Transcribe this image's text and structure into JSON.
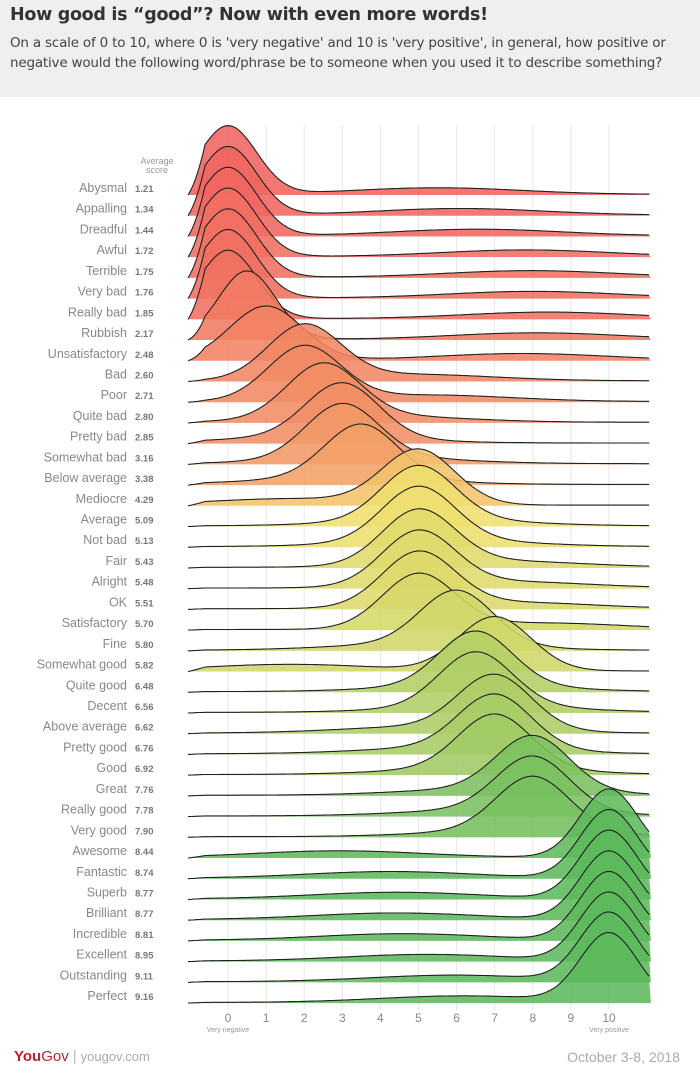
{
  "header": {
    "title": "How good is “good”? Now with even more words!",
    "subtitle": "On a scale of 0 to 10, where 0 is 'very negative' and 10 is 'very positive', in general, how positive or negative would the following word/phrase be to someone when you used it to describe something?"
  },
  "chart_data": {
    "type": "ridgeline",
    "value_column_header": [
      "Average",
      "score"
    ],
    "xlim": [
      0,
      10
    ],
    "x_ticks": [
      "0",
      "1",
      "2",
      "3",
      "4",
      "5",
      "6",
      "7",
      "8",
      "9",
      "10"
    ],
    "x_tick_notes": {
      "low": "Very negative",
      "high": "Very positive"
    },
    "grid": "vertical",
    "categories": [
      "Abysmal",
      "Appalling",
      "Dreadful",
      "Awful",
      "Terrible",
      "Very bad",
      "Really bad",
      "Rubbish",
      "Unsatisfactory",
      "Bad",
      "Poor",
      "Quite bad",
      "Pretty bad",
      "Somewhat bad",
      "Below average",
      "Mediocre",
      "Average",
      "Not bad",
      "Fair",
      "Alright",
      "OK",
      "Satisfactory",
      "Fine",
      "Somewhat good",
      "Quite good",
      "Decent",
      "Above average",
      "Pretty good",
      "Good",
      "Great",
      "Really good",
      "Very good",
      "Awesome",
      "Fantastic",
      "Superb",
      "Brilliant",
      "Incredible",
      "Excellent",
      "Outstanding",
      "Perfect"
    ],
    "average_scores": [
      "1.21",
      "1.34",
      "1.44",
      "1.72",
      "1.75",
      "1.76",
      "1.85",
      "2.17",
      "2.48",
      "2.60",
      "2.71",
      "2.80",
      "2.85",
      "3.16",
      "3.38",
      "4.29",
      "5.09",
      "5.13",
      "5.43",
      "5.48",
      "5.51",
      "5.70",
      "5.80",
      "5.82",
      "6.48",
      "6.56",
      "6.62",
      "6.76",
      "6.92",
      "7.76",
      "7.78",
      "7.90",
      "8.44",
      "8.74",
      "8.77",
      "8.77",
      "8.81",
      "8.95",
      "9.11",
      "9.16"
    ],
    "approx_peaks": [
      0,
      0,
      0,
      0,
      0,
      0,
      0,
      0.5,
      1,
      2,
      2,
      2.5,
      3,
      3,
      3.5,
      5,
      5,
      5,
      5,
      5,
      5,
      5,
      6,
      7,
      6.5,
      6.5,
      7,
      7,
      7,
      8,
      8,
      8,
      10,
      10,
      10,
      10,
      10,
      10,
      10,
      10
    ],
    "colors": {
      "negative": "#f0605f",
      "neutral": "#f3e06e",
      "positive": "#5cb85c"
    }
  },
  "footer": {
    "brand_you": "You",
    "brand_gov": "Gov",
    "url": "yougov.com",
    "date": "October 3-8, 2018"
  }
}
